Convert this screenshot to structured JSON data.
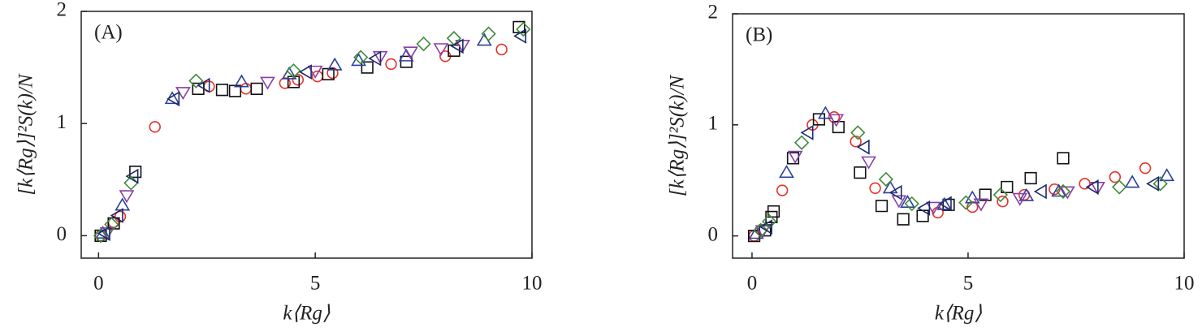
{
  "chart_data": [
    {
      "type": "scatter",
      "panel_label": "(A)",
      "xlabel": "k⟨Rg⟩",
      "ylabel": "[k⟨Rg⟩]²S(k)/N",
      "xlim": [
        -0.4,
        10
      ],
      "ylim": [
        -0.2,
        2
      ],
      "xticks": [
        0,
        5,
        10
      ],
      "yticks": [
        0,
        1,
        2
      ],
      "series": [
        {
          "color": "#e8312a",
          "marker": "circle",
          "x": [
            0.05,
            0.35,
            0.5,
            1.3,
            2.55,
            3.4,
            4.3,
            4.6,
            5.05,
            5.4,
            6.75,
            8.0,
            9.3
          ],
          "values": [
            0.0,
            0.12,
            0.17,
            0.97,
            1.33,
            1.31,
            1.36,
            1.39,
            1.42,
            1.45,
            1.53,
            1.6,
            1.66
          ]
        },
        {
          "color": "#111111",
          "marker": "square",
          "x": [
            0.05,
            0.35,
            0.85,
            2.3,
            2.85,
            3.15,
            3.65,
            4.5,
            5.3,
            6.2,
            7.1,
            8.2,
            9.7
          ],
          "values": [
            0.0,
            0.11,
            0.57,
            1.31,
            1.3,
            1.29,
            1.31,
            1.37,
            1.44,
            1.5,
            1.55,
            1.65,
            1.86
          ]
        },
        {
          "color": "#2b3f9e",
          "marker": "triangle-up",
          "x": [
            0.1,
            0.55,
            1.7,
            3.3,
            4.4,
            5.45,
            6.0,
            7.1,
            8.9
          ],
          "values": [
            0.02,
            0.27,
            1.22,
            1.37,
            1.44,
            1.52,
            1.56,
            1.6,
            1.74
          ]
        },
        {
          "color": "#8b3fa6",
          "marker": "triangle-down",
          "x": [
            0.2,
            0.65,
            1.95,
            3.9,
            5.0,
            6.5,
            7.2,
            7.9,
            8.4
          ],
          "values": [
            0.03,
            0.36,
            1.28,
            1.37,
            1.47,
            1.6,
            1.64,
            1.67,
            1.7
          ]
        },
        {
          "color": "#3f8a3a",
          "marker": "diamond",
          "x": [
            0.05,
            0.3,
            0.75,
            2.25,
            4.5,
            6.05,
            7.5,
            8.2,
            9.0,
            9.8
          ],
          "values": [
            0.0,
            0.1,
            0.47,
            1.38,
            1.47,
            1.59,
            1.71,
            1.76,
            1.8,
            1.84
          ]
        },
        {
          "color": "#1c2a6e",
          "marker": "triangle-left",
          "x": [
            0.15,
            0.45,
            0.8,
            1.75,
            2.45,
            4.8,
            6.4,
            8.3,
            9.75
          ],
          "values": [
            0.02,
            0.18,
            0.53,
            1.22,
            1.34,
            1.46,
            1.58,
            1.69,
            1.78
          ]
        }
      ]
    },
    {
      "type": "scatter",
      "panel_label": "(B)",
      "xlabel": "k⟨Rg⟩",
      "ylabel": "[k⟨Rg⟩]²S(k)/N",
      "xlim": [
        -0.45,
        10
      ],
      "ylim": [
        -0.2,
        2
      ],
      "xticks": [
        0,
        5,
        10
      ],
      "yticks": [
        0,
        1,
        2
      ],
      "series": [
        {
          "color": "#e8312a",
          "marker": "circle",
          "x": [
            0.05,
            0.7,
            1.4,
            1.9,
            2.4,
            2.85,
            4.3,
            5.1,
            5.8,
            6.3,
            7.0,
            7.7,
            8.4,
            9.1
          ],
          "values": [
            0.0,
            0.41,
            1.0,
            1.07,
            0.85,
            0.43,
            0.21,
            0.26,
            0.31,
            0.37,
            0.42,
            0.47,
            0.53,
            0.61
          ]
        },
        {
          "color": "#111111",
          "marker": "square",
          "x": [
            0.05,
            0.3,
            0.45,
            0.5,
            0.95,
            1.55,
            2.0,
            2.5,
            3.0,
            3.5,
            3.95,
            4.55,
            5.4,
            5.9,
            6.45,
            7.2
          ],
          "values": [
            0.0,
            0.05,
            0.17,
            0.22,
            0.7,
            1.05,
            0.98,
            0.57,
            0.27,
            0.15,
            0.18,
            0.28,
            0.37,
            0.44,
            0.52,
            0.7
          ]
        },
        {
          "color": "#2b3f9e",
          "marker": "triangle-up",
          "x": [
            0.1,
            0.8,
            1.7,
            3.2,
            3.6,
            4.45,
            5.1,
            6.35,
            7.1,
            8.8,
            9.6
          ],
          "values": [
            0.02,
            0.57,
            1.1,
            0.43,
            0.3,
            0.28,
            0.34,
            0.36,
            0.4,
            0.48,
            0.54
          ]
        },
        {
          "color": "#8b3fa6",
          "marker": "triangle-down",
          "x": [
            0.25,
            1.0,
            1.95,
            2.7,
            3.4,
            4.2,
            5.3,
            6.2,
            7.3,
            8.0
          ],
          "values": [
            0.05,
            0.72,
            1.05,
            0.67,
            0.32,
            0.26,
            0.29,
            0.34,
            0.4,
            0.44
          ]
        },
        {
          "color": "#3f8a3a",
          "marker": "diamond",
          "x": [
            0.2,
            0.4,
            1.15,
            2.45,
            3.1,
            3.7,
            4.95,
            5.75,
            7.2,
            8.5,
            9.45
          ],
          "values": [
            0.05,
            0.13,
            0.84,
            0.93,
            0.51,
            0.29,
            0.3,
            0.37,
            0.4,
            0.44,
            0.47
          ]
        },
        {
          "color": "#1c2a6e",
          "marker": "triangle-left",
          "x": [
            0.35,
            1.3,
            2.6,
            3.35,
            4.0,
            4.5,
            6.7,
            7.9,
            9.3
          ],
          "values": [
            0.08,
            0.93,
            0.8,
            0.39,
            0.25,
            0.29,
            0.4,
            0.44,
            0.47
          ]
        }
      ]
    }
  ]
}
